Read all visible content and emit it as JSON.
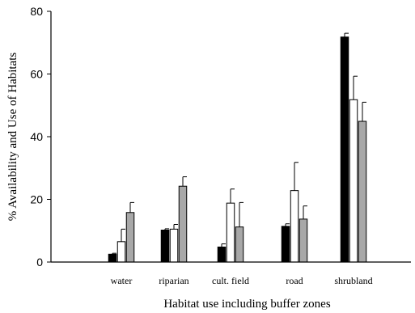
{
  "chart_data": {
    "type": "bar",
    "title": "",
    "xlabel": "Habitat use including buffer zones",
    "ylabel": "% Availability and Use of Habitats",
    "ylim": [
      0,
      80
    ],
    "yticks": [
      0,
      20,
      40,
      60,
      80
    ],
    "categories": [
      "water",
      "riparian",
      "cult. field",
      "road",
      "shrubland"
    ],
    "series": [
      {
        "fill": "#000000",
        "values": [
          2.5,
          10.2,
          4.8,
          11.4,
          71.8
        ],
        "errors": [
          0.3,
          0.4,
          1.0,
          0.8,
          1.2
        ]
      },
      {
        "fill": "#ffffff",
        "values": [
          6.5,
          10.5,
          18.8,
          22.8,
          51.8
        ],
        "errors": [
          4.0,
          1.5,
          4.5,
          9.0,
          7.5
        ]
      },
      {
        "fill": "#a8a8a8",
        "values": [
          15.8,
          24.2,
          11.2,
          13.7,
          44.9
        ],
        "errors": [
          3.2,
          3.0,
          7.8,
          4.2,
          6.1
        ]
      }
    ],
    "grid": false,
    "legend": "none"
  }
}
